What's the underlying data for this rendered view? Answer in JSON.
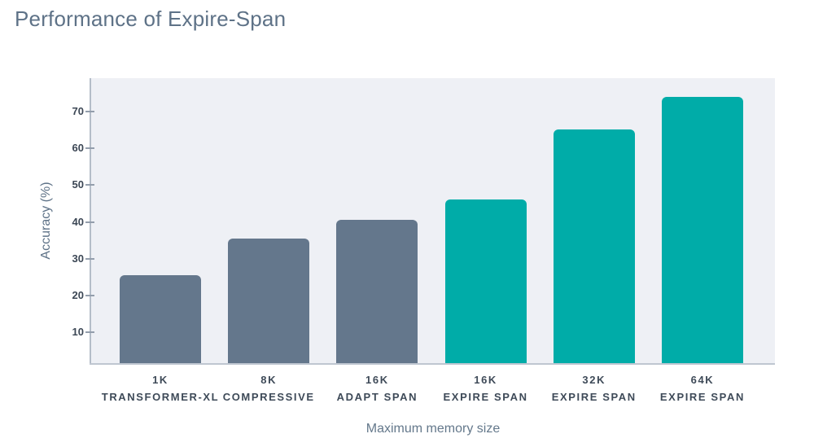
{
  "chart_data": {
    "type": "bar",
    "title": "Performance of Expire-Span",
    "xlabel": "Maximum memory size",
    "ylabel": "Accuracy (%)",
    "categories": [
      {
        "size": "1K",
        "model": "TRANSFORMER-XL"
      },
      {
        "size": "8K",
        "model": "COMPRESSIVE"
      },
      {
        "size": "16K",
        "model": "ADAPT SPAN"
      },
      {
        "size": "16K",
        "model": "EXPIRE SPAN"
      },
      {
        "size": "32K",
        "model": "EXPIRE SPAN"
      },
      {
        "size": "64K",
        "model": "EXPIRE SPAN"
      }
    ],
    "values": [
      25.5,
      35.5,
      40.5,
      46,
      65,
      74
    ],
    "bar_colors": [
      "#64778C",
      "#64778C",
      "#64778C",
      "#00ACA8",
      "#00ACA8",
      "#00ACA8"
    ],
    "yticks": [
      10,
      20,
      30,
      40,
      50,
      60,
      70
    ],
    "ylim": [
      1.7,
      79
    ],
    "grid": false,
    "legend": "none",
    "colors": {
      "baseline_series": "#64778C",
      "expire_span_series": "#00ACA8",
      "plot_background": "#EEF0F5",
      "axis_line": "#B4BDC9",
      "title_text": "#5E7287"
    }
  }
}
